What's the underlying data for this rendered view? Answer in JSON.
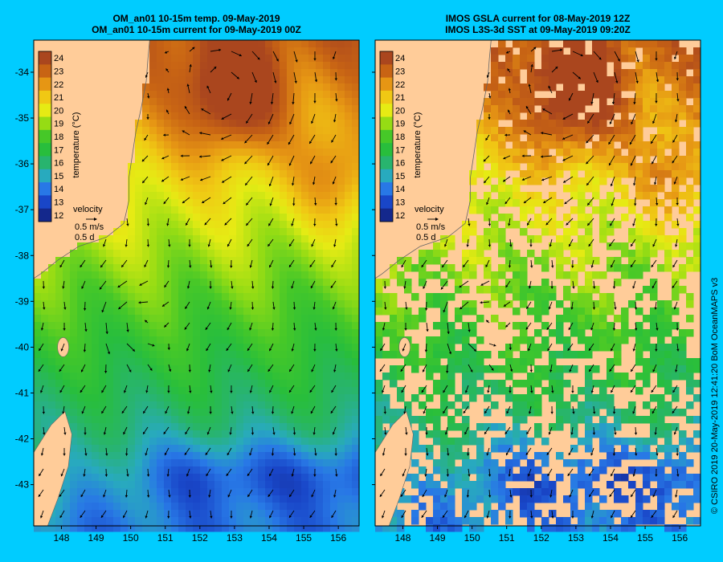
{
  "left_panel": {
    "title_line1": "OM_an01 10-15m temp. 09-May-2019",
    "title_line2": "OM_an01 10-15m current for 09-May-2019 00Z",
    "legend_label": "temperature (°C)",
    "velocity_label": "velocity",
    "velocity_speed": "0.5 m/s",
    "velocity_time": "0.5 d"
  },
  "right_panel": {
    "title_line1": "IMOS GSLA current for 08-May-2019 12Z",
    "title_line2": "IMOS L3S-3d SST at 09-May-2019 09:20Z",
    "legend_label": "temperature (°C)",
    "velocity_label": "velocity",
    "velocity_speed": "0.5 m/s",
    "velocity_time": "0.5 d"
  },
  "axes": {
    "lon_ticks": [
      "148",
      "149",
      "150",
      "151",
      "152",
      "153",
      "154",
      "155",
      "156"
    ],
    "lat_ticks": [
      "-34",
      "-35",
      "-36",
      "-37",
      "-38",
      "-39",
      "-40",
      "-41",
      "-42",
      "-43"
    ]
  },
  "colorbar_ticks": [
    "24",
    "23",
    "22",
    "21",
    "20",
    "19",
    "18",
    "17",
    "16",
    "15",
    "14",
    "13",
    "12"
  ],
  "credit": "© CSIRO 2019   20-May-2019 12:41:20 BoM OceanMAPS v3",
  "colors": {
    "background": "#00ccff",
    "land": "#ffcc99",
    "warm_core": "#c0641a",
    "cold": "#1f4fcf"
  }
}
